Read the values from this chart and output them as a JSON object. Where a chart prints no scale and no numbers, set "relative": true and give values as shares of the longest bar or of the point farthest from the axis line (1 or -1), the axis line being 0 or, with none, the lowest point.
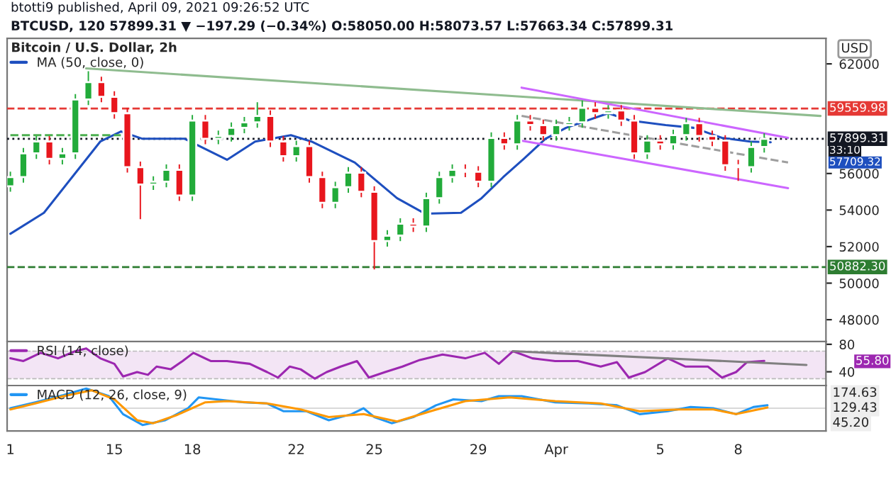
{
  "chart_data": [
    {
      "type": "candlestick",
      "title": "btotti9 published, April 09, 2021 09:26:52 UTC",
      "subtitle": "BTCUSD, 120 57899.31 ▼ −197.29 (−0.34%) O:58050.00 H:58073.57 L:57663.34 C:57899.31",
      "ylabel": "USD",
      "legend_title": "Bitcoin / U.S. Dollar, 2h",
      "legend": "top left",
      "tick_labels": "y",
      "xlim": [
        "2021-03-10T21:00",
        "2021-04-11T09:00"
      ],
      "ylim": [
        46800,
        63400
      ],
      "yticks": [
        48000,
        50000,
        52000,
        54000,
        56000,
        62000
      ],
      "x": [
        "2021-03-11T00:00",
        "2021-03-11T12:00",
        "2021-03-12T00:00",
        "2021-03-12T12:00",
        "2021-03-13T00:00",
        "2021-03-13T12:00",
        "2021-03-14T00:00",
        "2021-03-14T12:00",
        "2021-03-15T00:00",
        "2021-03-15T12:00",
        "2021-03-16T00:00",
        "2021-03-16T12:00",
        "2021-03-17T00:00",
        "2021-03-17T12:00",
        "2021-03-18T00:00",
        "2021-03-18T12:00",
        "2021-03-19T00:00",
        "2021-03-19T12:00",
        "2021-03-20T00:00",
        "2021-03-20T12:00",
        "2021-03-21T00:00",
        "2021-03-21T12:00",
        "2021-03-22T00:00",
        "2021-03-22T12:00",
        "2021-03-23T00:00",
        "2021-03-23T12:00",
        "2021-03-24T00:00",
        "2021-03-24T12:00",
        "2021-03-25T00:00",
        "2021-03-25T12:00",
        "2021-03-26T00:00",
        "2021-03-26T12:00",
        "2021-03-27T00:00",
        "2021-03-27T12:00",
        "2021-03-28T00:00",
        "2021-03-28T12:00",
        "2021-03-29T00:00",
        "2021-03-29T12:00",
        "2021-03-30T00:00",
        "2021-03-30T12:00",
        "2021-03-31T00:00",
        "2021-03-31T12:00",
        "2021-04-01T00:00",
        "2021-04-01T12:00",
        "2021-04-02T00:00",
        "2021-04-02T12:00",
        "2021-04-03T00:00",
        "2021-04-03T12:00",
        "2021-04-04T00:00",
        "2021-04-04T12:00",
        "2021-04-05T00:00",
        "2021-04-05T12:00",
        "2021-04-06T00:00",
        "2021-04-06T12:00",
        "2021-04-07T00:00",
        "2021-04-07T12:00",
        "2021-04-08T00:00",
        "2021-04-08T12:00",
        "2021-04-09T00:00"
      ],
      "ohlc": [
        [
          55300,
          56100,
          55000,
          55800
        ],
        [
          55800,
          57400,
          55500,
          57100
        ],
        [
          57100,
          58050,
          56800,
          57750
        ],
        [
          57750,
          58050,
          56500,
          56800
        ],
        [
          56800,
          57400,
          56500,
          57100
        ],
        [
          57100,
          60350,
          56800,
          60050
        ],
        [
          60050,
          61600,
          59750,
          61000
        ],
        [
          61000,
          61300,
          59900,
          60200
        ],
        [
          60200,
          60500,
          59000,
          59300
        ],
        [
          59300,
          59600,
          56050,
          56350
        ],
        [
          56350,
          56650,
          53500,
          55400
        ],
        [
          55400,
          55850,
          55100,
          55550
        ],
        [
          55550,
          56500,
          55250,
          56200
        ],
        [
          56200,
          56500,
          54500,
          54800
        ],
        [
          54800,
          59200,
          54500,
          58900
        ],
        [
          58900,
          59200,
          57600,
          57900
        ],
        [
          57900,
          58350,
          57600,
          58050
        ],
        [
          58050,
          58800,
          57750,
          58500
        ],
        [
          58500,
          59100,
          58200,
          58800
        ],
        [
          58800,
          59900,
          58500,
          59150
        ],
        [
          59150,
          59450,
          57450,
          57750
        ],
        [
          57750,
          58050,
          56650,
          56950
        ],
        [
          56950,
          57800,
          56650,
          57500
        ],
        [
          57500,
          57800,
          55500,
          55800
        ],
        [
          55800,
          56100,
          54100,
          54400
        ],
        [
          54400,
          55550,
          54100,
          55250
        ],
        [
          55250,
          56350,
          54950,
          56050
        ],
        [
          56050,
          56350,
          54700,
          55000
        ],
        [
          55000,
          55300,
          50750,
          52300
        ],
        [
          52300,
          52900,
          52000,
          52600
        ],
        [
          52600,
          53550,
          52300,
          53250
        ],
        [
          53250,
          53550,
          52800,
          53100
        ],
        [
          53100,
          54950,
          52800,
          54650
        ],
        [
          54650,
          56100,
          54350,
          55800
        ],
        [
          55800,
          56500,
          55500,
          56200
        ],
        [
          56200,
          56500,
          55800,
          56100
        ],
        [
          56100,
          56400,
          55250,
          55550
        ],
        [
          55550,
          58250,
          55250,
          57950
        ],
        [
          57950,
          58250,
          57300,
          57600
        ],
        [
          57600,
          59200,
          57300,
          58900
        ],
        [
          58900,
          59200,
          58350,
          58650
        ],
        [
          58650,
          58950,
          57800,
          58100
        ],
        [
          58100,
          58950,
          57800,
          58650
        ],
        [
          58650,
          59100,
          58350,
          58800
        ],
        [
          58800,
          60000,
          58500,
          59600
        ],
        [
          59600,
          59900,
          59000,
          59300
        ],
        [
          59300,
          59750,
          59000,
          59450
        ],
        [
          59450,
          59750,
          58600,
          58900
        ],
        [
          58900,
          59200,
          56800,
          57100
        ],
        [
          57100,
          58100,
          56800,
          57800
        ],
        [
          57800,
          58100,
          57300,
          57600
        ],
        [
          57600,
          58400,
          57300,
          58100
        ],
        [
          58100,
          59050,
          57800,
          58750
        ],
        [
          58750,
          59050,
          57750,
          58050
        ],
        [
          58050,
          58350,
          57500,
          57800
        ],
        [
          57800,
          58100,
          56150,
          56450
        ],
        [
          56450,
          56750,
          55600,
          56350
        ],
        [
          56350,
          57750,
          56050,
          57450
        ],
        [
          57450,
          58200,
          57150,
          57899.31
        ]
      ],
      "series": [
        {
          "name": "MA (50, close, 0)",
          "type": "line",
          "color": "#1e4fbf",
          "x": [
            "2021-03-11T00:00",
            "2021-03-12T07:00",
            "2021-03-13T09:00",
            "2021-03-14T11:00",
            "2021-03-15T06:00",
            "2021-03-16T02:00",
            "2021-03-17T17:00",
            "2021-03-19T08:00",
            "2021-03-20T10:00",
            "2021-03-21T19:00",
            "2021-03-22T14:00",
            "2021-03-24T06:00",
            "2021-03-25T21:00",
            "2021-03-26T23:00",
            "2021-03-28T08:00",
            "2021-03-29T03:00",
            "2021-03-29T23:00",
            "2021-03-30T18:00",
            "2021-03-31T14:00",
            "2021-04-01T09:00",
            "2021-04-03T00:00",
            "2021-04-03T20:00",
            "2021-04-05T05:00",
            "2021-04-06T07:00",
            "2021-04-07T09:00",
            "2021-04-08T11:00",
            "2021-04-09T06:00"
          ],
          "values": [
            52700,
            53850,
            55800,
            57750,
            58300,
            57900,
            57900,
            56750,
            57750,
            58100,
            57750,
            56600,
            54650,
            53800,
            53850,
            54650,
            55800,
            56800,
            57900,
            58500,
            59300,
            58900,
            58650,
            58500,
            57950,
            57750,
            57709.32
          ]
        },
        {
          "type": "line",
          "color": "#8fbc8f",
          "x": [
            "2021-03-13T22:00",
            "2021-04-11T04:00"
          ],
          "values": [
            61750,
            59150
          ]
        },
        {
          "type": "line",
          "color": "#4caf50",
          "line_style": "dashed",
          "x": [
            "2021-03-11T00:00",
            "2021-03-15T06:00"
          ],
          "values": [
            58100,
            58100
          ]
        },
        {
          "type": "line",
          "color": "#cc66ff",
          "x": [
            "2021-03-30T16:00",
            "2021-04-09T22:00"
          ],
          "values": [
            60700,
            57950
          ]
        },
        {
          "type": "line",
          "color": "#cc66ff",
          "x": [
            "2021-03-30T16:00",
            "2021-04-09T22:00"
          ],
          "values": [
            57800,
            55200
          ]
        },
        {
          "type": "line",
          "color": "#9e9e9e",
          "line_style": "dashed",
          "x": [
            "2021-03-30T16:00",
            "2021-04-09T22:00"
          ],
          "values": [
            59150,
            56600
          ]
        }
      ],
      "ref_lines": [
        {
          "axis": "y",
          "value": 59559.98,
          "label": "59559.98",
          "color": "#e53935",
          "line_style": "dashed"
        },
        {
          "axis": "y",
          "value": 50882.3,
          "label": "50882.30",
          "color": "#2e7d32",
          "line_style": "dashed"
        },
        {
          "axis": "y",
          "value": 57899.31,
          "label": "57899.31",
          "color": "#131722",
          "line_style": "dotted"
        }
      ],
      "annotations": [
        "33:10",
        "57709.32"
      ]
    },
    {
      "type": "line",
      "legend": "top left",
      "tick_labels": "y",
      "xlim": [
        "2021-03-10T21:00",
        "2021-04-11T09:00"
      ],
      "ylim": [
        20,
        84
      ],
      "yticks": [
        40,
        80
      ],
      "bands": [
        {
          "axis": "y",
          "from": 30,
          "to": 70,
          "color": "#f3e5f5"
        }
      ],
      "series": [
        {
          "name": "RSI (14, close)",
          "color": "#9c27b0",
          "x": [
            "2021-03-11T00:00",
            "2021-03-11T12:00",
            "2021-03-12T04:00",
            "2021-03-12T20:00",
            "2021-03-13T12:00",
            "2021-03-13T22:00",
            "2021-03-14T11:00",
            "2021-03-15T00:00",
            "2021-03-15T08:00",
            "2021-03-15T21:00",
            "2021-03-16T07:00",
            "2021-03-16T15:00",
            "2021-03-17T04:00",
            "2021-03-17T15:00",
            "2021-03-18T01:00",
            "2021-03-18T17:00",
            "2021-03-19T08:00",
            "2021-03-20T05:00",
            "2021-03-20T21:00",
            "2021-03-21T07:00",
            "2021-03-21T18:00",
            "2021-03-22T04:00",
            "2021-03-22T17:00",
            "2021-03-23T04:00",
            "2021-03-23T17:00",
            "2021-03-24T08:00",
            "2021-03-24T19:00",
            "2021-03-25T10:00",
            "2021-03-26T02:00",
            "2021-03-26T18:00",
            "2021-03-27T15:00",
            "2021-03-28T12:00",
            "2021-03-29T06:00",
            "2021-03-29T19:00",
            "2021-03-30T08:00",
            "2021-03-31T02:00",
            "2021-03-31T23:00",
            "2021-04-01T20:00",
            "2021-04-02T17:00",
            "2021-04-03T08:00",
            "2021-04-03T19:00",
            "2021-04-04T10:00",
            "2021-04-05T07:00",
            "2021-04-05T23:00",
            "2021-04-06T20:00",
            "2021-04-07T09:00",
            "2021-04-07T22:00",
            "2021-04-08T08:00",
            "2021-04-09T00:00"
          ],
          "values": [
            59.6,
            55.6,
            67.6,
            59.6,
            70,
            74,
            59.6,
            51.6,
            33.2,
            39.6,
            35.6,
            47.6,
            43.6,
            55.6,
            67.6,
            55.6,
            55.6,
            51.6,
            39.6,
            31.6,
            47.6,
            43.6,
            30,
            39.6,
            47.6,
            55.6,
            31.6,
            39.6,
            47.6,
            57.2,
            65.2,
            59.6,
            67.6,
            51.6,
            70,
            59.6,
            55.6,
            55.6,
            47.6,
            54,
            31.6,
            39.6,
            59.6,
            47.6,
            47.6,
            31.6,
            39.6,
            54,
            55.8
          ]
        },
        {
          "color": "#808080",
          "x": [
            "2021-03-30T08:00",
            "2021-04-10T15:00"
          ],
          "values": [
            70,
            50
          ]
        }
      ],
      "annotations": [
        "55.80"
      ]
    },
    {
      "type": "line",
      "relative": true,
      "legend": "top left",
      "tick_labels": "x",
      "xlim": [
        "2021-03-10T21:00",
        "2021-04-11T09:00"
      ],
      "xticks": [
        {
          "value": "2021-03-11",
          "label": "1"
        },
        {
          "value": "2021-03-15",
          "label": "15"
        },
        {
          "value": "2021-03-18",
          "label": "18"
        },
        {
          "value": "2021-03-22",
          "label": "22"
        },
        {
          "value": "2021-03-25",
          "label": "25"
        },
        {
          "value": "2021-03-29",
          "label": "29"
        },
        {
          "value": "2021-04-01",
          "label": "Apr"
        },
        {
          "value": "2021-04-05",
          "label": "5"
        },
        {
          "value": "2021-04-08",
          "label": "8"
        }
      ],
      "series": [
        {
          "name": "MACD (12, 26, close, 9)",
          "color": "#2196f3",
          "x": [
            "2021-03-11T00:00",
            "2021-03-11T23:00",
            "2021-03-13T01:00",
            "2021-03-13T22:00",
            "2021-03-14T19:00",
            "2021-03-15T08:00",
            "2021-03-16T02:00",
            "2021-03-16T23:00",
            "2021-03-17T20:00",
            "2021-03-18T06:00",
            "2021-03-18T22:00",
            "2021-03-20T00:00",
            "2021-03-20T21:00",
            "2021-03-21T12:00",
            "2021-03-22T09:00",
            "2021-03-23T06:00",
            "2021-03-24T03:00",
            "2021-03-24T14:00",
            "2021-03-25T00:00",
            "2021-03-25T16:00",
            "2021-03-26T12:00",
            "2021-03-27T09:00",
            "2021-03-28T01:00",
            "2021-03-29T03:00",
            "2021-03-29T19:00",
            "2021-03-30T16:00",
            "2021-03-31T23:00",
            "2021-04-02T06:00",
            "2021-04-03T08:00",
            "2021-04-04T05:00",
            "2021-04-05T07:00",
            "2021-04-06T04:00",
            "2021-04-07T01:00",
            "2021-04-07T22:00",
            "2021-04-08T14:00",
            "2021-04-09T03:00"
          ],
          "values": [
            0,
            0.3,
            0.67,
            1,
            0.61,
            -0.3,
            -0.85,
            -0.61,
            0,
            0.55,
            0.45,
            0.3,
            0.24,
            -0.15,
            -0.15,
            -0.61,
            -0.3,
            0,
            -0.45,
            -0.76,
            -0.45,
            0.15,
            0.45,
            0.36,
            0.61,
            0.61,
            0.3,
            0.24,
            0.15,
            -0.3,
            -0.15,
            0.06,
            0,
            -0.3,
            0.06,
            0.15
          ]
        },
        {
          "color": "#ff9800",
          "x": [
            "2021-03-11T00:00",
            "2021-03-11T23:00",
            "2021-03-13T01:00",
            "2021-03-14T03:00",
            "2021-03-15T00:00",
            "2021-03-15T21:00",
            "2021-03-16T12:00",
            "2021-03-17T09:00",
            "2021-03-18T12:00",
            "2021-03-19T08:00",
            "2021-03-20T21:00",
            "2021-03-22T04:00",
            "2021-03-23T06:00",
            "2021-03-24T14:00",
            "2021-03-25T21:00",
            "2021-03-27T04:00",
            "2021-03-28T12:00",
            "2021-03-30T05:00",
            "2021-03-31T23:00",
            "2021-04-02T17:00",
            "2021-04-04T05:00",
            "2021-04-05T18:00",
            "2021-04-07T01:00",
            "2021-04-07T22:00",
            "2021-04-09T03:00"
          ],
          "values": [
            -0.06,
            0.24,
            0.61,
            0.91,
            0.45,
            -0.61,
            -0.76,
            -0.36,
            0.3,
            0.36,
            0.24,
            -0.06,
            -0.45,
            -0.3,
            -0.67,
            -0.15,
            0.36,
            0.55,
            0.36,
            0.24,
            -0.15,
            -0.06,
            -0.06,
            -0.3,
            0.04
          ]
        }
      ],
      "annotations": [
        "174.63",
        "129.43",
        "45.20"
      ]
    }
  ]
}
